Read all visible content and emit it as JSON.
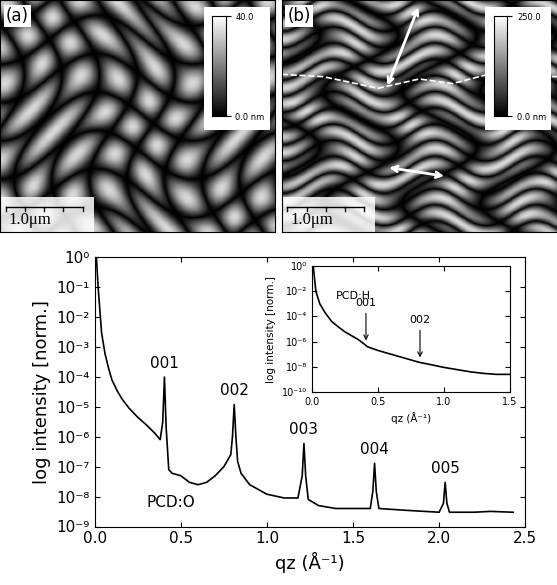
{
  "images": [
    {
      "label": "(a)",
      "scale_bar": "1.0μm",
      "colorbar": {
        "range": [
          0.0,
          40.0
        ],
        "ticks": [
          {
            "value": 40.0,
            "label": "40.0"
          },
          {
            "value": 0.0,
            "label": "0.0 nm"
          }
        ]
      }
    },
    {
      "label": "(b)",
      "scale_bar": "1.0μm",
      "colorbar": {
        "range": [
          0.0,
          250.0
        ],
        "ticks": [
          {
            "value": 250.0,
            "label": "250.0"
          },
          {
            "value": 0.0,
            "label": "0.0 nm"
          }
        ]
      }
    }
  ],
  "chart_data": [
    {
      "type": "line",
      "log": "y",
      "x_label": "qz (Å⁻¹)",
      "y_label": "log intensity [norm.]",
      "x": [
        0.01,
        0.02,
        0.04,
        0.06,
        0.08,
        0.1,
        0.13,
        0.16,
        0.2,
        0.25,
        0.3,
        0.35,
        0.38,
        0.395,
        0.405,
        0.415,
        0.43,
        0.45,
        0.5,
        0.55,
        0.6,
        0.65,
        0.7,
        0.75,
        0.79,
        0.8,
        0.81,
        0.82,
        0.83,
        0.85,
        0.9,
        1.0,
        1.1,
        1.18,
        1.205,
        1.215,
        1.225,
        1.24,
        1.3,
        1.4,
        1.5,
        1.6,
        1.615,
        1.625,
        1.635,
        1.65,
        1.8,
        2.0,
        2.025,
        2.035,
        2.045,
        2.06,
        2.2,
        2.3,
        2.43
      ],
      "series": [
        {
          "color": "#000000",
          "values": [
            1.0,
            0.1,
            0.003,
            0.0006,
            0.0002,
            8e-05,
            3.5e-05,
            1.8e-05,
            9e-06,
            4.5e-06,
            2.5e-06,
            1.3e-06,
            8e-07,
            3e-06,
            0.0001,
            2e-06,
            8e-08,
            6e-08,
            5e-08,
            3e-08,
            2.5e-08,
            3e-08,
            5e-08,
            1e-07,
            2.5e-07,
            1e-06,
            1.2e-05,
            1e-06,
            1.5e-07,
            6e-08,
            2.5e-08,
            1.2e-08,
            9e-09,
            9e-09,
            5e-08,
            6e-07,
            5e-08,
            8e-09,
            5e-09,
            4e-09,
            4e-09,
            4e-09,
            1.5e-08,
            1.3e-07,
            1.5e-08,
            4e-09,
            3.5e-09,
            3e-09,
            6e-09,
            3e-08,
            6e-09,
            3e-09,
            3e-09,
            3.2e-09,
            3e-09
          ]
        }
      ],
      "xlim": [
        0.0,
        2.5
      ],
      "xticks": [
        {
          "value": 0.0,
          "label": "0.0"
        },
        0.5,
        {
          "value": 1.0,
          "label": "1.0"
        },
        1.5,
        {
          "value": 2.0,
          "label": "2.0"
        },
        2.5
      ],
      "ylim": [
        1e-09,
        1.0
      ],
      "yticks": [
        {
          "value": 1e-09,
          "label": "10⁻⁹"
        },
        {
          "value": 1e-08,
          "label": "10⁻⁸"
        },
        {
          "value": 1e-07,
          "label": "10⁻⁷"
        },
        {
          "value": 1e-06,
          "label": "10⁻⁶"
        },
        {
          "value": 1e-05,
          "label": "10⁻⁵"
        },
        {
          "value": 0.0001,
          "label": "10⁻⁴"
        },
        {
          "value": 0.001,
          "label": "10⁻³"
        },
        {
          "value": 0.01,
          "label": "10⁻²"
        },
        {
          "value": 0.1,
          "label": "10⁻¹"
        },
        {
          "value": 1.0,
          "label": "10⁰"
        }
      ],
      "annotations": [
        {
          "text": "001",
          "x": 0.405
        },
        {
          "text": "002",
          "x": 0.81
        },
        {
          "text": "003",
          "x": 1.215
        },
        {
          "text": "004",
          "x": 1.625
        },
        {
          "text": "005",
          "x": 2.035
        },
        {
          "text": "PCD:O"
        }
      ]
    },
    {
      "type": "line",
      "log": "y",
      "x_label": "qz (Å⁻¹)",
      "y_label": "log intensity [norm.]",
      "x": [
        0.01,
        0.03,
        0.06,
        0.1,
        0.15,
        0.2,
        0.25,
        0.3,
        0.35,
        0.4,
        0.42,
        0.5,
        0.6,
        0.7,
        0.8,
        0.82,
        0.9,
        1.0,
        1.1,
        1.2,
        1.3,
        1.4,
        1.5
      ],
      "series": [
        {
          "color": "#000000",
          "values": [
            1.0,
            0.01,
            0.001,
            0.0002,
            4e-05,
            1.5e-05,
            6e-06,
            3e-06,
            1.5e-06,
            6e-07,
            4e-07,
            2e-07,
            1e-07,
            5e-08,
            2.5e-08,
            2.2e-08,
            1.5e-08,
            9e-09,
            6e-09,
            4e-09,
            3e-09,
            2.5e-09,
            2.5e-09
          ]
        }
      ],
      "xlim": [
        0.0,
        1.5
      ],
      "xticks": [
        {
          "value": 0.0,
          "label": "0.0"
        },
        0.5,
        {
          "value": 1.0,
          "label": "1.0"
        },
        1.5
      ],
      "ylim": [
        1e-10,
        1.0
      ],
      "yticks": [
        {
          "value": 1e-10,
          "label": "10⁻¹⁰"
        },
        {
          "value": 1e-08,
          "label": "10⁻⁸"
        },
        {
          "value": 1e-06,
          "label": "10⁻⁶"
        },
        {
          "value": 0.0001,
          "label": "10⁻⁴"
        },
        {
          "value": 0.01,
          "label": "10⁻²"
        },
        {
          "value": 1.0,
          "label": "10⁰"
        }
      ],
      "annotations": [
        {
          "text": "001",
          "x": 0.41
        },
        {
          "text": "002",
          "x": 0.82
        },
        {
          "text": "PCD:H"
        }
      ]
    }
  ]
}
